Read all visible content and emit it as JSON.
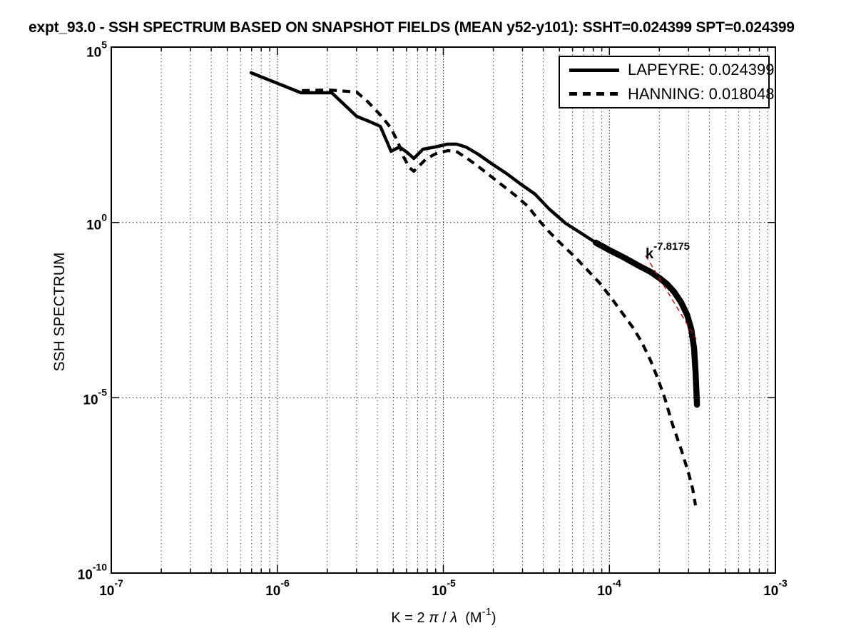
{
  "axes": {
    "tick_base": "10"
  },
  "xlabel_parts": {
    "pre": "K = 2 ",
    "pi": "π",
    "mid": " / ",
    "lambda": "λ",
    "unit_open": "  (M",
    "unit_exp": "-1",
    "unit_close": ")"
  },
  "chart_data": {
    "type": "line",
    "title": "expt_93.0 - SSH SPECTRUM BASED ON SNAPSHOT FIELDS (MEAN y52-y101): SSHT=0.024399 SPT=0.024399",
    "xlabel": "K = 2 π / λ  (M^-1)",
    "ylabel": "SSH SPECTRUM",
    "x_scale": "log",
    "y_scale": "log",
    "x_log_range": [
      -7,
      -3
    ],
    "y_log_range": [
      -10,
      5
    ],
    "x_tick_exponents": [
      "-7",
      "-6",
      "-5",
      "-4",
      "-3"
    ],
    "y_tick_exponents": [
      "5",
      "0",
      "-5",
      "-10"
    ],
    "grid": true,
    "legend_position": "upper right",
    "series": [
      {
        "name": "LAPEYRE: 0.024399",
        "style": "solid",
        "points_log10": [
          [
            -6.158,
            4.267
          ],
          [
            -5.857,
            3.697
          ],
          [
            -5.672,
            3.697
          ],
          [
            -5.522,
            3.026
          ],
          [
            -5.448,
            2.883
          ],
          [
            -5.38,
            2.741
          ],
          [
            -5.337,
            2.273
          ],
          [
            -5.315,
            2.028
          ],
          [
            -5.264,
            2.15
          ],
          [
            -5.221,
            2.008
          ],
          [
            -5.178,
            1.825
          ],
          [
            -5.122,
            2.089
          ],
          [
            -5.049,
            2.15
          ],
          [
            -4.976,
            2.232
          ],
          [
            -4.92,
            2.232
          ],
          [
            -4.864,
            2.15
          ],
          [
            -4.791,
            1.947
          ],
          [
            -4.705,
            1.662
          ],
          [
            -4.62,
            1.397
          ],
          [
            -4.534,
            1.092
          ],
          [
            -4.448,
            0.807
          ],
          [
            -4.362,
            0.379
          ],
          [
            -4.263,
            -0.028
          ],
          [
            -4.168,
            -0.313
          ],
          [
            -4.082,
            -0.577
          ],
          [
            -3.996,
            -0.801
          ],
          [
            -3.911,
            -1.005
          ],
          [
            -3.825,
            -1.229
          ],
          [
            -3.752,
            -1.412
          ],
          [
            -3.696,
            -1.595
          ],
          [
            -3.653,
            -1.758
          ],
          [
            -3.61,
            -1.982
          ],
          [
            -3.567,
            -2.287
          ],
          [
            -3.532,
            -2.633
          ],
          [
            -3.507,
            -3.04
          ],
          [
            -3.49,
            -3.59
          ],
          [
            -3.481,
            -4.241
          ],
          [
            -3.472,
            -5.198
          ]
        ]
      },
      {
        "name": "HANNING: 0.018048",
        "style": "dashed",
        "points_log10": [
          [
            -5.852,
            3.758
          ],
          [
            -5.693,
            3.778
          ],
          [
            -5.522,
            3.717
          ],
          [
            -5.457,
            3.453
          ],
          [
            -5.38,
            3.066
          ],
          [
            -5.32,
            2.72
          ],
          [
            -5.277,
            2.333
          ],
          [
            -5.239,
            1.865
          ],
          [
            -5.204,
            1.56
          ],
          [
            -5.178,
            1.458
          ],
          [
            -5.144,
            1.621
          ],
          [
            -5.101,
            1.825
          ],
          [
            -5.041,
            1.967
          ],
          [
            -4.972,
            2.048
          ],
          [
            -4.916,
            2.008
          ],
          [
            -4.856,
            1.825
          ],
          [
            -4.791,
            1.601
          ],
          [
            -4.714,
            1.316
          ],
          [
            -4.637,
            1.031
          ],
          [
            -4.56,
            0.746
          ],
          [
            -4.491,
            0.461
          ],
          [
            -4.427,
            0.074
          ],
          [
            -4.362,
            -0.272
          ],
          [
            -4.285,
            -0.638
          ],
          [
            -4.207,
            -0.984
          ],
          [
            -4.13,
            -1.371
          ],
          [
            -4.061,
            -1.717
          ],
          [
            -3.993,
            -2.124
          ],
          [
            -3.924,
            -2.572
          ],
          [
            -3.855,
            -3.02
          ],
          [
            -3.804,
            -3.427
          ],
          [
            -3.752,
            -3.936
          ],
          [
            -3.709,
            -4.445
          ],
          [
            -3.666,
            -5.015
          ],
          [
            -3.619,
            -5.768
          ],
          [
            -3.567,
            -6.48
          ],
          [
            -3.524,
            -7.132
          ],
          [
            -3.498,
            -7.6
          ],
          [
            -3.481,
            -8.068
          ]
        ]
      }
    ],
    "fit_line": {
      "label_base": "k",
      "label_exp": "-7.8175",
      "slope": -7.8175,
      "color": "#cc0000",
      "points_log10": [
        [
          -3.782,
          -0.943
        ],
        [
          -3.477,
          -3.327
        ]
      ]
    }
  },
  "colors": {
    "curve": "#000000",
    "fit_line": "#cc0000",
    "grid_minor": "#4a4a4a",
    "grid_major": "#222222",
    "background": "#ffffff"
  }
}
